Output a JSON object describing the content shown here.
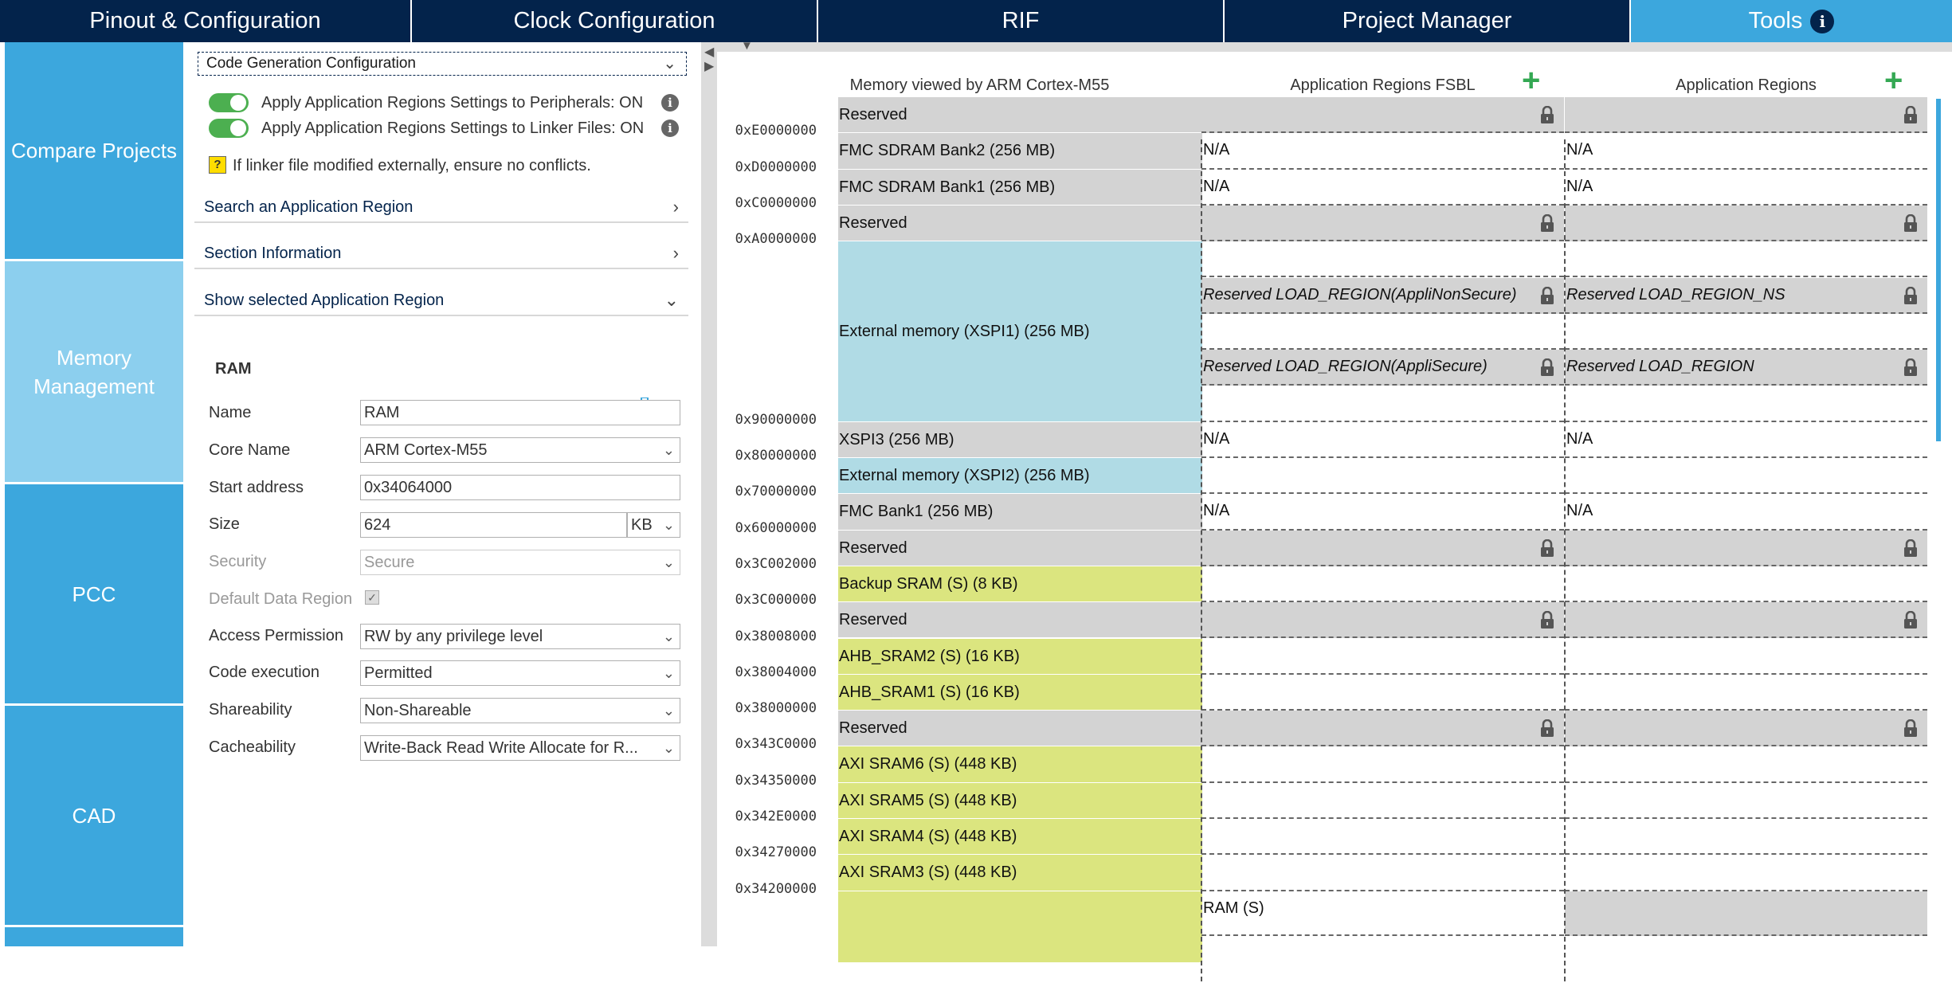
{
  "topnav": {
    "tabs": [
      {
        "label": "Pinout & Configuration"
      },
      {
        "label": "Clock Configuration"
      },
      {
        "label": "RIF"
      },
      {
        "label": "Project Manager"
      },
      {
        "label": "Tools"
      }
    ],
    "active_tab": "Tools"
  },
  "sidebar": {
    "items": [
      {
        "label": "Compare Projects"
      },
      {
        "label": "Memory Management"
      },
      {
        "label": "PCC"
      },
      {
        "label": "CAD"
      }
    ],
    "selected": "Memory Management"
  },
  "panel": {
    "code_gen_label": "Code Generation Configuration",
    "toggle1_label": "Apply Application Regions Settings to Peripherals: ON",
    "toggle2_label": "Apply Application Regions Settings to Linker Files: ON",
    "warning_text": "If linker file modified externally, ensure no conflicts.",
    "search_label": "Search an Application Region",
    "section_info_label": "Section Information",
    "show_selected_label": "Show selected Application Region",
    "region_title": "RAM",
    "form": {
      "name_label": "Name",
      "name_value": "RAM",
      "core_label": "Core Name",
      "core_value": "ARM Cortex-M55",
      "start_label": "Start address",
      "start_value": "0x34064000",
      "size_label": "Size",
      "size_value": "624",
      "size_unit": "KB",
      "security_label": "Security",
      "security_value": "Secure",
      "default_label": "Default Data Region",
      "access_label": "Access Permission",
      "access_value": "RW by any privilege level",
      "exec_label": "Code execution",
      "exec_value": "Permitted",
      "share_label": "Shareability",
      "share_value": "Non-Shareable",
      "cache_label": "Cacheability",
      "cache_value": "Write-Back Read Write Allocate for R..."
    }
  },
  "memory": {
    "col_header_view": "Memory viewed by ARM Cortex-M55",
    "col_header_fsbl": "Application Regions FSBL",
    "col_header_app": "Application Regions",
    "addresses": [
      "0xE0000000",
      "0xD0000000",
      "0xC0000000",
      "0xA0000000",
      "0x90000000",
      "0x80000000",
      "0x70000000",
      "0x60000000",
      "0x3C002000",
      "0x3C000000",
      "0x38008000",
      "0x38004000",
      "0x38000000",
      "0x343C0000",
      "0x34350000",
      "0x342E0000",
      "0x34270000",
      "0x34200000"
    ],
    "cells": [
      {
        "label": "Reserved",
        "color": "gray"
      },
      {
        "label": "FMC SDRAM Bank2 (256 MB)",
        "color": "gray"
      },
      {
        "label": "FMC SDRAM Bank1 (256 MB)",
        "color": "gray"
      },
      {
        "label": "Reserved",
        "color": "gray"
      },
      {
        "label": "External memory (XSPI1) (256 MB)",
        "color": "blue"
      },
      {
        "label": "XSPI3 (256 MB)",
        "color": "gray"
      },
      {
        "label": "External memory (XSPI2) (256 MB)",
        "color": "blue"
      },
      {
        "label": "FMC Bank1 (256 MB)",
        "color": "gray"
      },
      {
        "label": "Reserved",
        "color": "gray"
      },
      {
        "label": "Backup SRAM (S) (8 KB)",
        "color": "yellow"
      },
      {
        "label": "Reserved",
        "color": "gray"
      },
      {
        "label": "AHB_SRAM2 (S) (16 KB)",
        "color": "yellow"
      },
      {
        "label": "AHB_SRAM1 (S) (16 KB)",
        "color": "yellow"
      },
      {
        "label": "Reserved",
        "color": "gray"
      },
      {
        "label": "AXI SRAM6 (S) (448 KB)",
        "color": "yellow"
      },
      {
        "label": "AXI SRAM5 (S) (448 KB)",
        "color": "yellow"
      },
      {
        "label": "AXI SRAM4 (S) (448 KB)",
        "color": "yellow"
      },
      {
        "label": "AXI SRAM3 (S) (448 KB)",
        "color": "yellow"
      },
      {
        "label": "",
        "color": "yellow"
      }
    ],
    "fsbl": [
      {
        "label": "",
        "gray": true,
        "lock": true
      },
      {
        "label": "N/A"
      },
      {
        "label": "N/A"
      },
      {
        "label": "",
        "gray": true,
        "lock": true
      },
      {
        "label": ""
      },
      {
        "label": "Reserved LOAD_REGION(AppliNonSecure)",
        "gray": true,
        "lock": true,
        "italic": true
      },
      {
        "label": ""
      },
      {
        "label": "Reserved LOAD_REGION(AppliSecure)",
        "gray": true,
        "lock": true,
        "italic": true
      },
      {
        "label": ""
      },
      {
        "label": "N/A"
      },
      {
        "label": ""
      },
      {
        "label": "N/A"
      },
      {
        "label": "",
        "gray": true,
        "lock": true
      },
      {
        "label": ""
      },
      {
        "label": "",
        "gray": true,
        "lock": true
      },
      {
        "label": ""
      },
      {
        "label": ""
      },
      {
        "label": "",
        "gray": true,
        "lock": true
      },
      {
        "label": ""
      },
      {
        "label": ""
      },
      {
        "label": ""
      },
      {
        "label": ""
      },
      {
        "label": "RAM (S)"
      }
    ],
    "app": [
      {
        "label": "",
        "gray": true,
        "lock": true
      },
      {
        "label": "N/A"
      },
      {
        "label": "N/A"
      },
      {
        "label": "",
        "gray": true,
        "lock": true
      },
      {
        "label": ""
      },
      {
        "label": "Reserved LOAD_REGION_NS",
        "gray": true,
        "lock": true,
        "italic": true
      },
      {
        "label": ""
      },
      {
        "label": "Reserved LOAD_REGION",
        "gray": true,
        "lock": true,
        "italic": true
      },
      {
        "label": ""
      },
      {
        "label": "N/A"
      },
      {
        "label": ""
      },
      {
        "label": "N/A"
      },
      {
        "label": "",
        "gray": true,
        "lock": true
      },
      {
        "label": ""
      },
      {
        "label": "",
        "gray": true,
        "lock": true
      },
      {
        "label": ""
      },
      {
        "label": ""
      },
      {
        "label": "",
        "gray": true,
        "lock": true
      },
      {
        "label": ""
      },
      {
        "label": ""
      },
      {
        "label": ""
      },
      {
        "label": ""
      },
      {
        "label": "",
        "gray": true
      }
    ]
  }
}
